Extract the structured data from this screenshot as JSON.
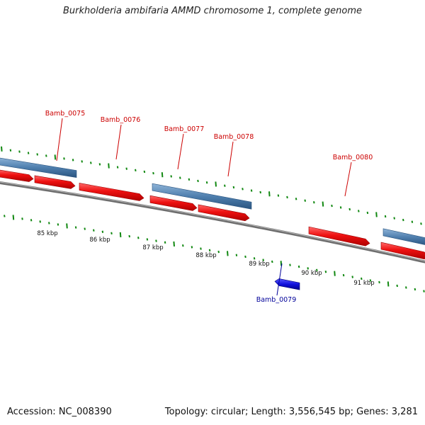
{
  "title": "Burkholderia ambifaria AMMD chromosome 1, complete genome",
  "footer": {
    "accession": "Accession: NC_008390",
    "summary": "Topology: circular; Length: 3,556,545 bp; Genes: 3,281"
  },
  "colors": {
    "cds_forward": "#ee1111",
    "cds_reverse": "#1111dd",
    "gene_bar": "#4f7fae",
    "backbone": "#777777",
    "tick": "#118811",
    "label_forward": "#cc0000",
    "label_reverse": "#000099"
  },
  "scale_labels": [
    "85 kbp",
    "86 kbp",
    "87 kbp",
    "88 kbp",
    "89 kbp",
    "90 kbp",
    "91 kbp"
  ],
  "gene_labels": [
    {
      "text": "Bamb_0075",
      "strand": "forward"
    },
    {
      "text": "Bamb_0076",
      "strand": "forward"
    },
    {
      "text": "Bamb_0077",
      "strand": "forward"
    },
    {
      "text": "Bamb_0078",
      "strand": "forward"
    },
    {
      "text": "Bamb_0079",
      "strand": "reverse"
    },
    {
      "text": "Bamb_0080",
      "strand": "forward"
    }
  ]
}
